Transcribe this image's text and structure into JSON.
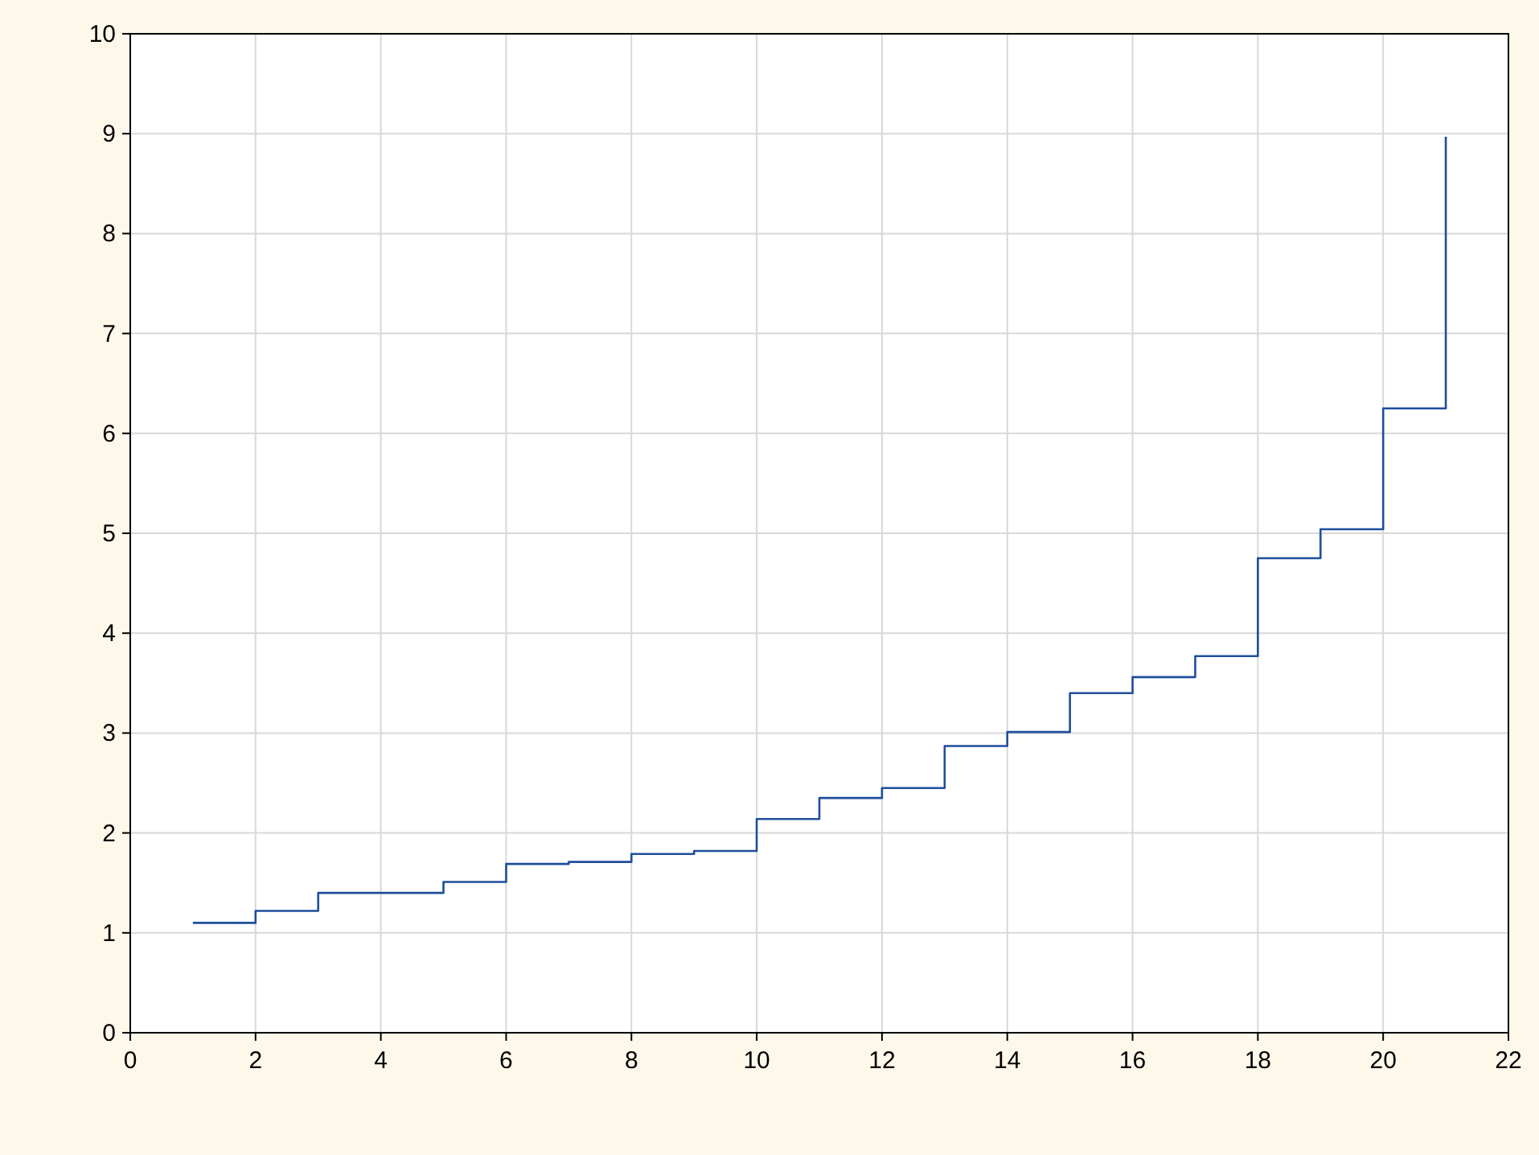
{
  "chart_data": {
    "type": "step",
    "x": [
      1,
      2,
      3,
      4,
      5,
      6,
      7,
      8,
      9,
      10,
      11,
      12,
      13,
      14,
      15,
      16,
      17,
      18,
      19,
      20,
      21
    ],
    "series": [
      {
        "color": "#1f4e9c",
        "values": [
          1.1,
          1.22,
          1.4,
          1.4,
          1.51,
          1.69,
          1.71,
          1.79,
          1.82,
          2.14,
          2.35,
          2.45,
          2.87,
          3.01,
          3.4,
          3.56,
          3.77,
          4.75,
          5.04,
          6.25,
          8.97
        ]
      }
    ],
    "xlim": [
      0,
      22
    ],
    "xticks": [
      0,
      2,
      4,
      6,
      8,
      10,
      12,
      14,
      16,
      18,
      20,
      22
    ],
    "ylim": [
      0,
      10
    ],
    "yticks": [
      0,
      1,
      2,
      3,
      4,
      5,
      6,
      7,
      8,
      9,
      10
    ],
    "grid": true
  }
}
